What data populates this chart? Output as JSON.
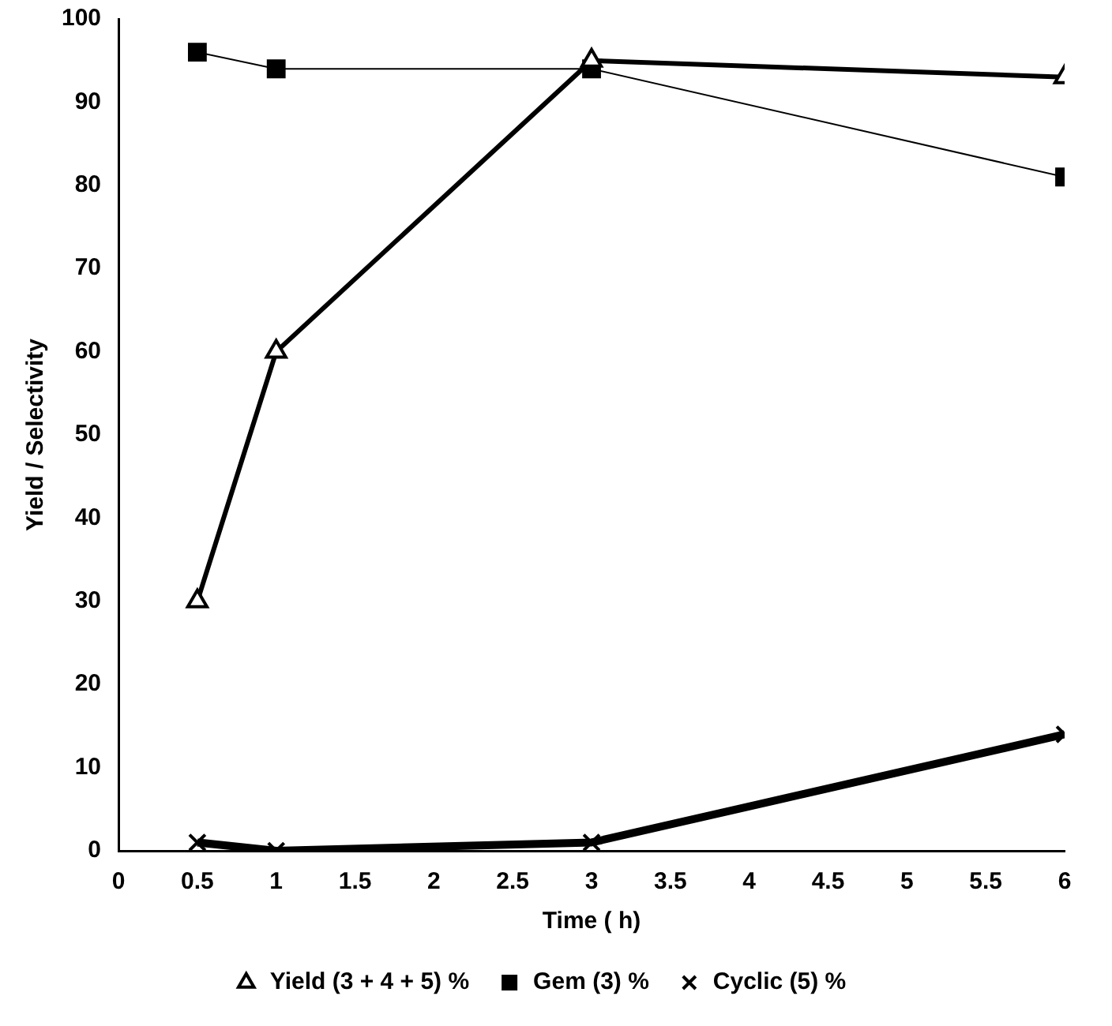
{
  "chart_data": {
    "type": "line",
    "xlabel": "Time ( h)",
    "ylabel": "Yield / Selectivity",
    "x": [
      0.5,
      1,
      3,
      6
    ],
    "series": [
      {
        "name": "Yield (3 + 4 + 5) %",
        "color": "#000000",
        "marker": "triangle",
        "values": [
          30,
          60,
          95,
          93
        ]
      },
      {
        "name": "Gem (3) %",
        "color": "#000000",
        "marker": "square",
        "values": [
          96,
          94,
          94,
          81
        ]
      },
      {
        "name": "Cyclic (5) %",
        "color": "#000000",
        "marker": "cross",
        "values": [
          1,
          0,
          1,
          14
        ]
      }
    ],
    "xlim": [
      0,
      6
    ],
    "xticks": [
      0,
      0.5,
      1,
      1.5,
      2,
      2.5,
      3,
      3.5,
      4,
      4.5,
      5,
      5.5,
      6
    ],
    "ylim": [
      0,
      100
    ],
    "yticks": [
      0,
      10,
      20,
      30,
      40,
      50,
      60,
      70,
      80,
      90,
      100
    ],
    "grid": false,
    "legend": "bottom"
  }
}
